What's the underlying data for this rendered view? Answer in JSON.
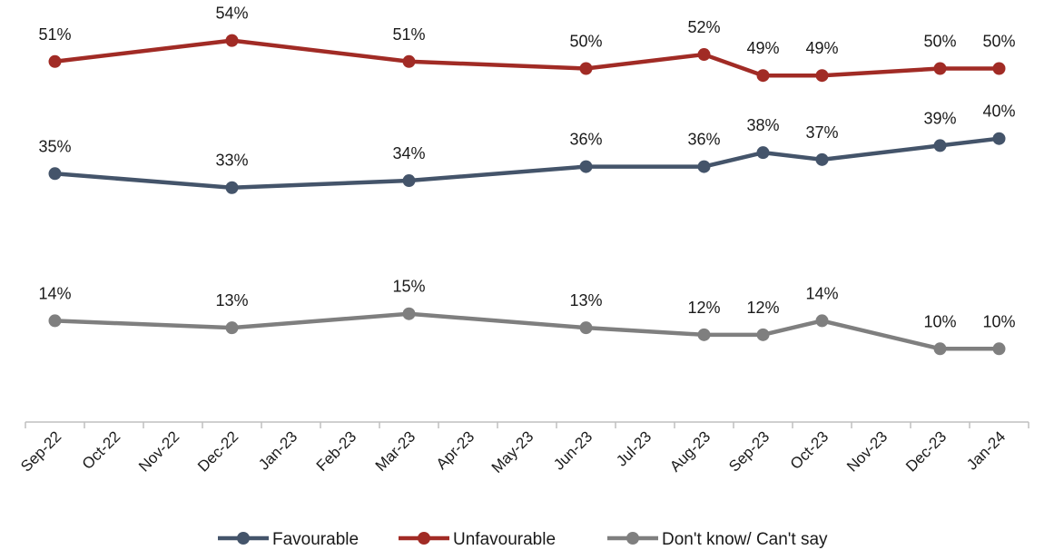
{
  "chart_data": {
    "type": "line",
    "title": "",
    "xlabel": "",
    "ylabel": "",
    "ylim": [
      0,
      60
    ],
    "grid": false,
    "legend_position": "bottom",
    "categories": [
      "Sep-22",
      "Oct-22",
      "Nov-22",
      "Dec-22",
      "Jan-23",
      "Feb-23",
      "Mar-23",
      "Apr-23",
      "May-23",
      "Jun-23",
      "Jul-23",
      "Aug-23",
      "Sep-23",
      "Oct-23",
      "Nov-23",
      "Dec-23",
      "Jan-24"
    ],
    "series": [
      {
        "name": "Favourable",
        "color": "#44546a",
        "points": [
          {
            "x": "Sep-22",
            "y": 35,
            "label": "35%"
          },
          {
            "x": "Dec-22",
            "y": 33,
            "label": "33%"
          },
          {
            "x": "Mar-23",
            "y": 34,
            "label": "34%"
          },
          {
            "x": "Jun-23",
            "y": 36,
            "label": "36%"
          },
          {
            "x": "Aug-23",
            "y": 36,
            "label": "36%"
          },
          {
            "x": "Sep-23",
            "y": 38,
            "label": "38%"
          },
          {
            "x": "Oct-23",
            "y": 37,
            "label": "37%"
          },
          {
            "x": "Dec-23",
            "y": 39,
            "label": "39%"
          },
          {
            "x": "Jan-24",
            "y": 40,
            "label": "40%"
          }
        ]
      },
      {
        "name": "Unfavourable",
        "color": "#a12b25",
        "points": [
          {
            "x": "Sep-22",
            "y": 51,
            "label": "51%"
          },
          {
            "x": "Dec-22",
            "y": 54,
            "label": "54%"
          },
          {
            "x": "Mar-23",
            "y": 51,
            "label": "51%"
          },
          {
            "x": "Jun-23",
            "y": 50,
            "label": "50%"
          },
          {
            "x": "Aug-23",
            "y": 52,
            "label": "52%"
          },
          {
            "x": "Sep-23",
            "y": 49,
            "label": "49%"
          },
          {
            "x": "Oct-23",
            "y": 49,
            "label": "49%"
          },
          {
            "x": "Dec-23",
            "y": 50,
            "label": "50%"
          },
          {
            "x": "Jan-24",
            "y": 50,
            "label": "50%"
          }
        ]
      },
      {
        "name": "Don't know/ Can't say",
        "color": "#7f7f7f",
        "points": [
          {
            "x": "Sep-22",
            "y": 14,
            "label": "14%"
          },
          {
            "x": "Dec-22",
            "y": 13,
            "label": "13%"
          },
          {
            "x": "Mar-23",
            "y": 15,
            "label": "15%"
          },
          {
            "x": "Jun-23",
            "y": 13,
            "label": "13%"
          },
          {
            "x": "Aug-23",
            "y": 12,
            "label": "12%"
          },
          {
            "x": "Sep-23",
            "y": 12,
            "label": "12%"
          },
          {
            "x": "Oct-23",
            "y": 14,
            "label": "14%"
          },
          {
            "x": "Dec-23",
            "y": 10,
            "label": "10%"
          },
          {
            "x": "Jan-24",
            "y": 10,
            "label": "10%"
          }
        ]
      }
    ]
  }
}
